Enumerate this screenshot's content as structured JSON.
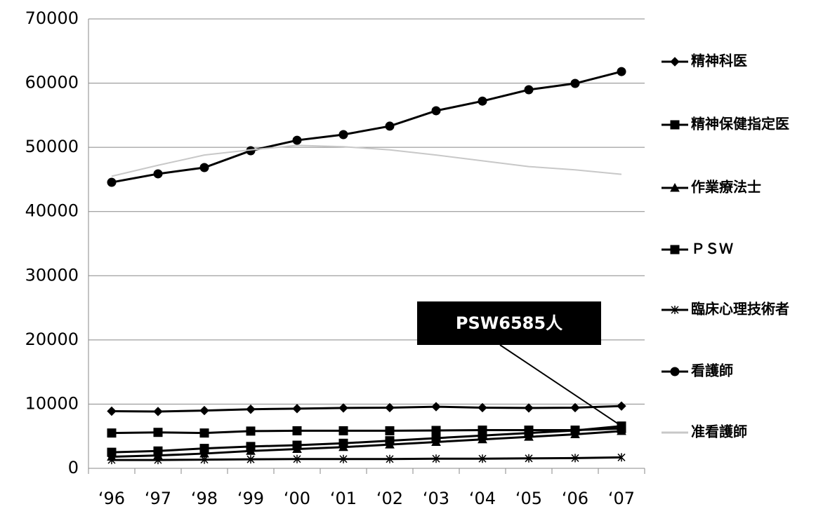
{
  "chart_data": {
    "type": "line",
    "categories": [
      "‘96",
      "‘97",
      "‘98",
      "‘99",
      "‘00",
      "‘01",
      "‘02",
      "‘03",
      "‘04",
      "‘05",
      "‘06",
      "‘07"
    ],
    "series": [
      {
        "name": "精神科医",
        "color": "#000000",
        "marker": "diamond",
        "values": [
          8900,
          8850,
          9000,
          9200,
          9300,
          9400,
          9450,
          9600,
          9450,
          9400,
          9450,
          9700
        ]
      },
      {
        "name": "精神保健指定医",
        "color": "#000000",
        "marker": "square",
        "values": [
          5500,
          5600,
          5500,
          5800,
          5850,
          5850,
          5850,
          5900,
          5950,
          5950,
          5950,
          6200
        ]
      },
      {
        "name": "作業療法士",
        "color": "#000000",
        "marker": "triangle",
        "values": [
          1800,
          2000,
          2300,
          2700,
          3000,
          3300,
          3700,
          4100,
          4500,
          4900,
          5300,
          5800
        ]
      },
      {
        "name": "ＰＳＷ",
        "color": "#000000",
        "marker": "square",
        "values": [
          2500,
          2700,
          3100,
          3400,
          3600,
          3900,
          4300,
          4700,
          5100,
          5500,
          5900,
          6585
        ]
      },
      {
        "name": "臨床心理技術者",
        "color": "#000000",
        "marker": "asterisk",
        "values": [
          1300,
          1300,
          1350,
          1400,
          1450,
          1450,
          1450,
          1500,
          1500,
          1550,
          1600,
          1700
        ]
      },
      {
        "name": "看護師",
        "color": "#000000",
        "marker": "circle",
        "values": [
          44550,
          45870,
          46850,
          49470,
          51100,
          51980,
          53300,
          55700,
          57200,
          58970,
          59950,
          61800
        ]
      },
      {
        "name": "准看護師",
        "color": "#c8c8c8",
        "marker": "none",
        "values": [
          45500,
          47200,
          48800,
          49600,
          50300,
          50100,
          49600,
          48800,
          47900,
          47000,
          46500,
          45800
        ]
      }
    ],
    "ylim": [
      0,
      70000
    ],
    "yticks": [
      0,
      10000,
      20000,
      30000,
      40000,
      50000,
      60000,
      70000
    ],
    "grid": true,
    "annotation": {
      "text": "PSW6585人",
      "series": 3,
      "point": 11
    }
  }
}
